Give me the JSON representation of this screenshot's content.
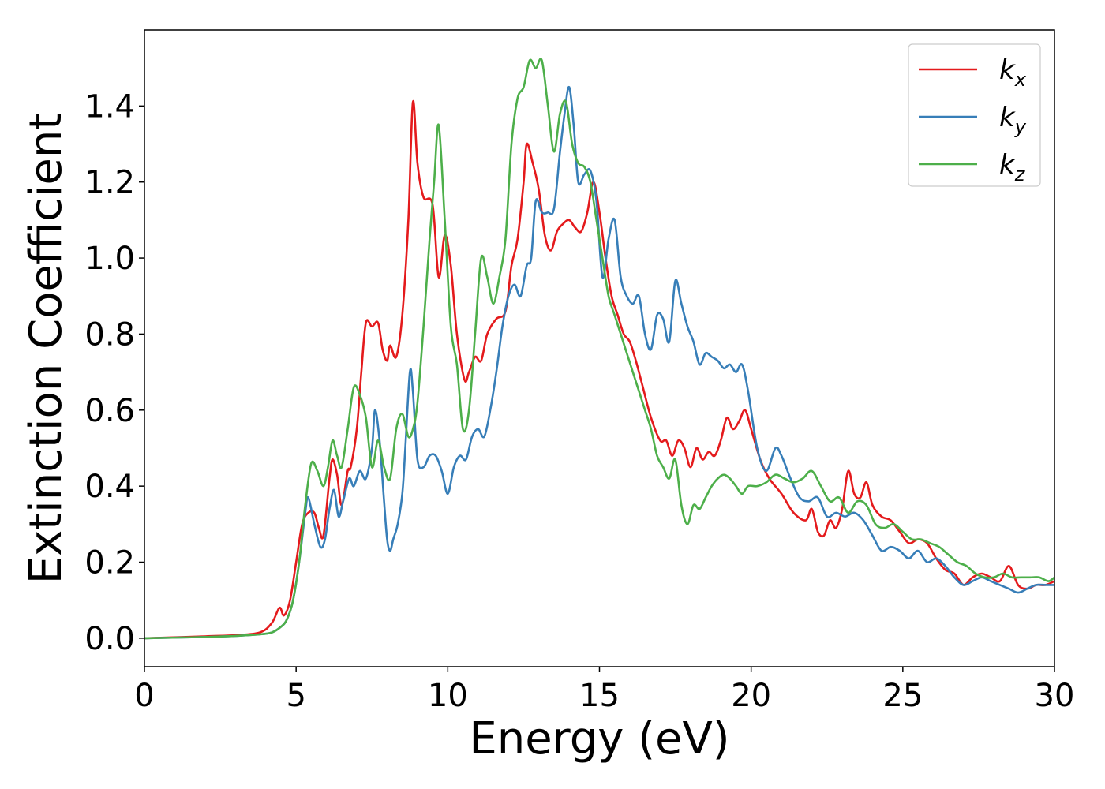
{
  "chart_data": {
    "type": "line",
    "xlabel": "Energy (eV)",
    "ylabel": "Extinction Coefficient",
    "xlim": [
      0,
      30
    ],
    "ylim": [
      -0.075,
      1.6
    ],
    "xticks": [
      0,
      5,
      10,
      15,
      20,
      25,
      30
    ],
    "xtick_labels": [
      "0",
      "5",
      "10",
      "15",
      "20",
      "25",
      "30"
    ],
    "yticks": [
      0.0,
      0.2,
      0.4,
      0.6,
      0.8,
      1.0,
      1.2,
      1.4
    ],
    "ytick_labels": [
      "0.0",
      "0.2",
      "0.4",
      "0.6",
      "0.8",
      "1.0",
      "1.2",
      "1.4"
    ],
    "grid": false,
    "legend_position": "top-right",
    "series": [
      {
        "name": "k_x",
        "label_base": "k",
        "label_sub": "x",
        "color": "#e41a1c",
        "x": [
          0,
          2,
          3,
          3.8,
          4.2,
          4.45,
          4.6,
          4.8,
          5.0,
          5.2,
          5.4,
          5.6,
          5.75,
          5.9,
          6.1,
          6.2,
          6.35,
          6.5,
          6.7,
          6.8,
          7.0,
          7.15,
          7.3,
          7.5,
          7.7,
          7.85,
          8.0,
          8.1,
          8.3,
          8.5,
          8.7,
          8.85,
          9.0,
          9.2,
          9.5,
          9.7,
          9.9,
          10.1,
          10.3,
          10.55,
          10.7,
          10.9,
          11.1,
          11.3,
          11.6,
          11.9,
          12.1,
          12.3,
          12.5,
          12.6,
          12.8,
          13.0,
          13.2,
          13.4,
          13.6,
          13.8,
          14.0,
          14.2,
          14.4,
          14.6,
          14.8,
          15.0,
          15.2,
          15.4,
          15.6,
          15.8,
          16.0,
          16.2,
          16.4,
          16.7,
          17.0,
          17.2,
          17.4,
          17.6,
          17.8,
          18.0,
          18.2,
          18.4,
          18.6,
          18.8,
          19.0,
          19.2,
          19.4,
          19.6,
          19.8,
          20.0,
          20.3,
          20.6,
          21.0,
          21.4,
          21.8,
          22.0,
          22.2,
          22.4,
          22.6,
          22.8,
          23.0,
          23.2,
          23.4,
          23.6,
          23.8,
          24.0,
          24.3,
          24.6,
          24.9,
          25.2,
          25.5,
          25.8,
          26.1,
          26.4,
          26.7,
          27.0,
          27.3,
          27.6,
          27.9,
          28.2,
          28.5,
          28.8,
          29.1,
          29.4,
          29.7,
          30.0
        ],
        "values": [
          0.0,
          0.005,
          0.008,
          0.015,
          0.04,
          0.08,
          0.06,
          0.1,
          0.2,
          0.3,
          0.33,
          0.33,
          0.29,
          0.27,
          0.42,
          0.47,
          0.43,
          0.35,
          0.44,
          0.45,
          0.55,
          0.7,
          0.83,
          0.82,
          0.83,
          0.76,
          0.73,
          0.77,
          0.74,
          0.85,
          1.1,
          1.41,
          1.25,
          1.16,
          1.14,
          0.95,
          1.06,
          0.98,
          0.8,
          0.68,
          0.7,
          0.74,
          0.73,
          0.8,
          0.84,
          0.86,
          0.98,
          1.05,
          1.2,
          1.3,
          1.25,
          1.18,
          1.06,
          1.02,
          1.07,
          1.09,
          1.1,
          1.08,
          1.07,
          1.12,
          1.2,
          1.12,
          1.0,
          0.9,
          0.85,
          0.8,
          0.78,
          0.73,
          0.67,
          0.58,
          0.52,
          0.52,
          0.48,
          0.52,
          0.5,
          0.45,
          0.5,
          0.47,
          0.49,
          0.48,
          0.52,
          0.58,
          0.55,
          0.57,
          0.6,
          0.55,
          0.47,
          0.42,
          0.38,
          0.33,
          0.31,
          0.34,
          0.28,
          0.27,
          0.31,
          0.29,
          0.34,
          0.44,
          0.38,
          0.37,
          0.41,
          0.35,
          0.32,
          0.31,
          0.28,
          0.25,
          0.26,
          0.25,
          0.21,
          0.18,
          0.17,
          0.14,
          0.16,
          0.17,
          0.16,
          0.15,
          0.19,
          0.14,
          0.13,
          0.14,
          0.14,
          0.15
        ]
      },
      {
        "name": "k_y",
        "label_base": "k",
        "label_sub": "y",
        "color": "#377eb8",
        "x": [
          0,
          2,
          3,
          3.8,
          4.2,
          4.5,
          4.7,
          4.9,
          5.1,
          5.3,
          5.4,
          5.6,
          5.8,
          5.95,
          6.1,
          6.25,
          6.4,
          6.55,
          6.75,
          6.9,
          7.1,
          7.3,
          7.5,
          7.6,
          7.75,
          7.9,
          8.0,
          8.1,
          8.2,
          8.35,
          8.5,
          8.6,
          8.75,
          8.85,
          9.0,
          9.2,
          9.4,
          9.6,
          9.8,
          10.0,
          10.2,
          10.4,
          10.6,
          10.8,
          11.0,
          11.2,
          11.4,
          11.6,
          11.8,
          12.0,
          12.2,
          12.4,
          12.6,
          12.75,
          12.9,
          13.1,
          13.3,
          13.5,
          13.7,
          13.85,
          14.0,
          14.15,
          14.3,
          14.5,
          14.7,
          14.9,
          15.1,
          15.3,
          15.5,
          15.7,
          15.9,
          16.1,
          16.3,
          16.5,
          16.7,
          16.9,
          17.1,
          17.3,
          17.5,
          17.7,
          17.9,
          18.1,
          18.3,
          18.5,
          18.7,
          18.9,
          19.1,
          19.3,
          19.5,
          19.7,
          19.9,
          20.2,
          20.5,
          20.8,
          21.0,
          21.3,
          21.6,
          21.9,
          22.2,
          22.5,
          22.8,
          23.1,
          23.4,
          23.7,
          24.0,
          24.3,
          24.6,
          24.9,
          25.2,
          25.5,
          25.8,
          26.1,
          26.4,
          26.7,
          27.0,
          27.3,
          27.6,
          27.9,
          28.2,
          28.5,
          28.8,
          29.1,
          29.4,
          29.7,
          30.0
        ],
        "values": [
          0.0,
          0.003,
          0.006,
          0.01,
          0.015,
          0.03,
          0.05,
          0.1,
          0.2,
          0.33,
          0.37,
          0.3,
          0.24,
          0.26,
          0.34,
          0.39,
          0.32,
          0.36,
          0.42,
          0.4,
          0.44,
          0.42,
          0.5,
          0.6,
          0.52,
          0.36,
          0.26,
          0.23,
          0.26,
          0.3,
          0.38,
          0.5,
          0.7,
          0.65,
          0.47,
          0.45,
          0.48,
          0.48,
          0.44,
          0.38,
          0.45,
          0.48,
          0.47,
          0.53,
          0.55,
          0.53,
          0.6,
          0.7,
          0.82,
          0.9,
          0.93,
          0.9,
          0.98,
          1.0,
          1.15,
          1.12,
          1.12,
          1.13,
          1.28,
          1.38,
          1.45,
          1.35,
          1.2,
          1.22,
          1.23,
          1.15,
          0.95,
          1.05,
          1.1,
          0.95,
          0.9,
          0.88,
          0.9,
          0.8,
          0.76,
          0.85,
          0.84,
          0.78,
          0.94,
          0.88,
          0.82,
          0.78,
          0.72,
          0.75,
          0.74,
          0.73,
          0.71,
          0.72,
          0.7,
          0.72,
          0.65,
          0.5,
          0.44,
          0.5,
          0.48,
          0.42,
          0.37,
          0.36,
          0.37,
          0.32,
          0.33,
          0.32,
          0.33,
          0.31,
          0.27,
          0.23,
          0.24,
          0.23,
          0.21,
          0.23,
          0.2,
          0.21,
          0.19,
          0.16,
          0.14,
          0.15,
          0.16,
          0.15,
          0.14,
          0.13,
          0.12,
          0.13,
          0.14,
          0.14,
          0.14
        ]
      },
      {
        "name": "k_z",
        "label_base": "k",
        "label_sub": "z",
        "color": "#4daf4a",
        "x": [
          0,
          2,
          3,
          3.8,
          4.2,
          4.5,
          4.7,
          4.9,
          5.1,
          5.3,
          5.5,
          5.7,
          5.9,
          6.05,
          6.2,
          6.35,
          6.5,
          6.7,
          6.9,
          7.1,
          7.3,
          7.5,
          7.7,
          7.9,
          8.1,
          8.3,
          8.5,
          8.7,
          8.85,
          9.0,
          9.2,
          9.4,
          9.55,
          9.7,
          9.9,
          10.1,
          10.3,
          10.5,
          10.7,
          10.9,
          11.1,
          11.3,
          11.5,
          11.7,
          11.9,
          12.1,
          12.3,
          12.5,
          12.7,
          12.9,
          13.1,
          13.3,
          13.5,
          13.7,
          13.9,
          14.1,
          14.3,
          14.5,
          14.7,
          14.9,
          15.1,
          15.3,
          15.5,
          15.7,
          15.9,
          16.1,
          16.3,
          16.5,
          16.7,
          16.9,
          17.1,
          17.3,
          17.5,
          17.7,
          17.9,
          18.1,
          18.3,
          18.5,
          18.7,
          18.9,
          19.1,
          19.3,
          19.5,
          19.7,
          19.9,
          20.2,
          20.5,
          20.8,
          21.1,
          21.4,
          21.7,
          22.0,
          22.3,
          22.6,
          22.9,
          23.2,
          23.5,
          23.8,
          24.1,
          24.4,
          24.7,
          25.0,
          25.3,
          25.6,
          25.9,
          26.2,
          26.5,
          26.8,
          27.1,
          27.4,
          27.7,
          28.0,
          28.3,
          28.6,
          28.9,
          29.2,
          29.5,
          29.8,
          30.0
        ],
        "values": [
          0.0,
          0.003,
          0.006,
          0.01,
          0.015,
          0.03,
          0.05,
          0.1,
          0.2,
          0.35,
          0.46,
          0.44,
          0.4,
          0.45,
          0.52,
          0.48,
          0.45,
          0.55,
          0.66,
          0.64,
          0.58,
          0.45,
          0.52,
          0.45,
          0.42,
          0.55,
          0.59,
          0.53,
          0.55,
          0.62,
          0.82,
          1.05,
          1.2,
          1.35,
          1.1,
          0.82,
          0.72,
          0.55,
          0.6,
          0.8,
          1.0,
          0.95,
          0.88,
          0.95,
          1.05,
          1.3,
          1.42,
          1.45,
          1.52,
          1.5,
          1.52,
          1.4,
          1.28,
          1.38,
          1.41,
          1.3,
          1.25,
          1.24,
          1.2,
          1.1,
          1.0,
          0.9,
          0.85,
          0.8,
          0.75,
          0.7,
          0.65,
          0.6,
          0.55,
          0.48,
          0.45,
          0.42,
          0.47,
          0.35,
          0.3,
          0.35,
          0.34,
          0.37,
          0.4,
          0.42,
          0.43,
          0.42,
          0.4,
          0.38,
          0.4,
          0.4,
          0.41,
          0.43,
          0.42,
          0.41,
          0.42,
          0.44,
          0.4,
          0.36,
          0.37,
          0.33,
          0.36,
          0.35,
          0.3,
          0.29,
          0.3,
          0.28,
          0.26,
          0.26,
          0.25,
          0.24,
          0.22,
          0.2,
          0.19,
          0.17,
          0.16,
          0.16,
          0.17,
          0.16,
          0.16,
          0.16,
          0.16,
          0.15,
          0.16
        ]
      }
    ]
  }
}
